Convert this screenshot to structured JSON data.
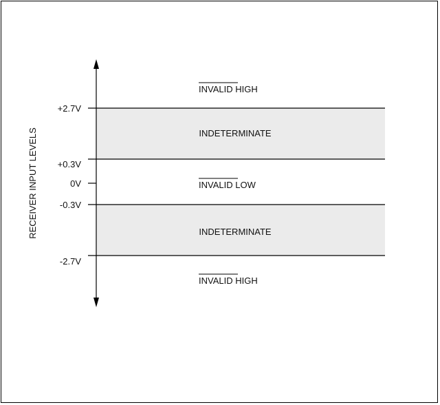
{
  "axis_label": "RECEIVER INPUT LEVELS",
  "levels": [
    {
      "label": "+2.7V"
    },
    {
      "label": "+0.3V"
    },
    {
      "label": "0V"
    },
    {
      "label": "-0.3V"
    },
    {
      "label": "-2.7V"
    }
  ],
  "regions": [
    {
      "text_bar": "INVALID",
      "text_rest": " HIGH"
    },
    {
      "text": "INDETERMINATE"
    },
    {
      "text_bar": "INVALID",
      "text_rest": " LOW"
    },
    {
      "text": "INDETERMINATE"
    },
    {
      "text_bar": "INVALID",
      "text_rest": " HIGH"
    }
  ],
  "colors": {
    "band_fill": "#ebebeb",
    "line": "#000000"
  }
}
